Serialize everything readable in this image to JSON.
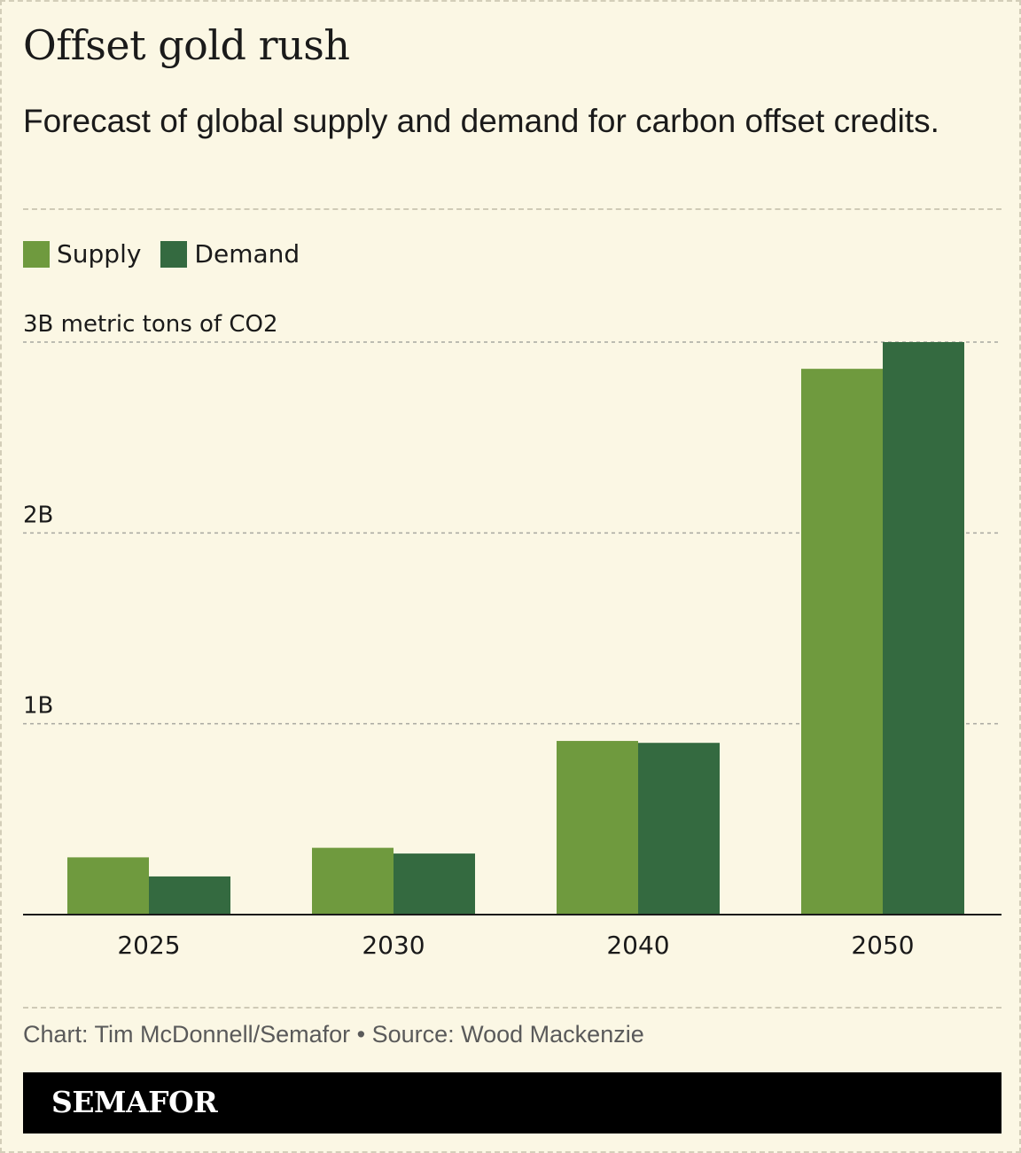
{
  "header": {
    "title": "Offset gold rush",
    "subtitle": "Forecast of global supply and demand for carbon offset credits."
  },
  "legend": {
    "supply_label": "Supply",
    "demand_label": "Demand"
  },
  "colors": {
    "supply": "#6f9a3e",
    "demand": "#346a40",
    "grid": "#a8a8a0",
    "axis": "#1a1a1a",
    "text": "#1a1a1a"
  },
  "chart_data": {
    "type": "bar",
    "title": "Offset gold rush",
    "subtitle": "Forecast of global supply and demand for carbon offset credits.",
    "categories": [
      "2025",
      "2030",
      "2040",
      "2050"
    ],
    "series": [
      {
        "name": "Supply",
        "values": [
          0.3,
          0.35,
          0.91,
          2.86
        ]
      },
      {
        "name": "Demand",
        "values": [
          0.2,
          0.32,
          0.9,
          3.0
        ]
      }
    ],
    "ylim": [
      0,
      3
    ],
    "yticks": [
      {
        "value": 1,
        "label": "1B"
      },
      {
        "value": 2,
        "label": "2B"
      },
      {
        "value": 3,
        "label": "3B metric tons of CO2"
      }
    ],
    "xlabel": "",
    "ylabel": "",
    "grid": true,
    "legend_position": "top-left"
  },
  "footer": {
    "credit": "Chart: Tim McDonnell/Semafor • Source: Wood Mackenzie",
    "brand": "SEMAFOR"
  }
}
